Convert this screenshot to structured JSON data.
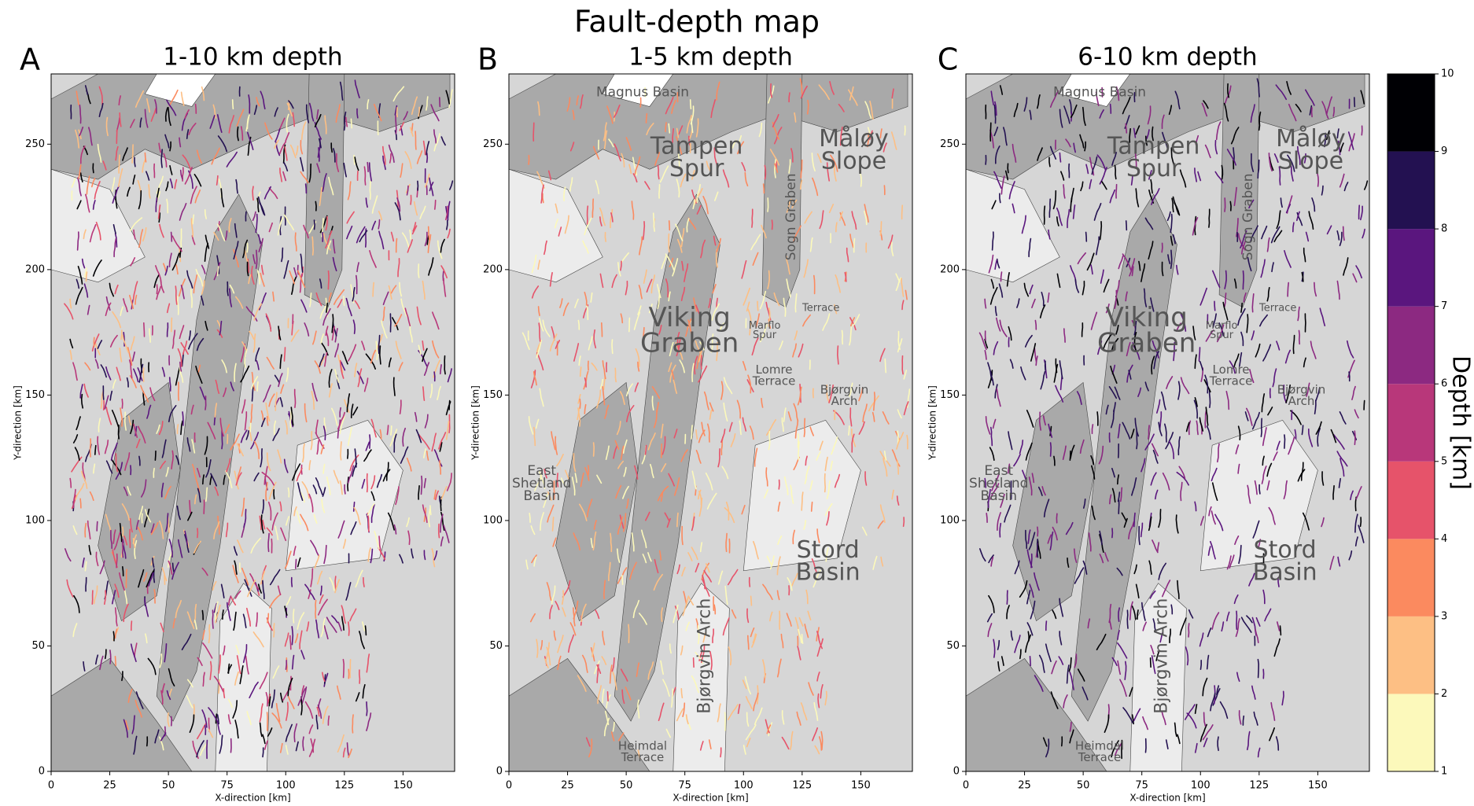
{
  "title": "Fault-depth map",
  "chart_data": [
    {
      "type": "map",
      "panel": "A",
      "title": "1-10 km depth",
      "xlabel": "X-direction [km]",
      "ylabel": "Y-direction [km]",
      "xlim": [
        0,
        172
      ],
      "ylim": [
        0,
        278
      ],
      "xticks": [
        0,
        25,
        50,
        75,
        100,
        125,
        150
      ],
      "yticks": [
        0,
        50,
        100,
        150,
        200,
        250
      ],
      "annotations": []
    },
    {
      "type": "map",
      "panel": "B",
      "title": "1-5 km depth",
      "xlabel": "X-direction [km]",
      "ylabel": "Y-direction [km]",
      "xlim": [
        0,
        172
      ],
      "ylim": [
        0,
        278
      ],
      "xticks": [
        0,
        25,
        50,
        75,
        100,
        125,
        150
      ],
      "yticks": [
        0,
        50,
        100,
        150,
        200,
        250
      ],
      "annotations": [
        {
          "lines": [
            "Magnus Basin"
          ]
        },
        {
          "lines": [
            "Tampen",
            "Spur"
          ]
        },
        {
          "lines": [
            "Sogn Graben"
          ]
        },
        {
          "lines": [
            "Måløy",
            "Slope"
          ]
        },
        {
          "lines": [
            "Viking",
            "Graben"
          ]
        },
        {
          "lines": [
            "Marflo",
            "Spur"
          ]
        },
        {
          "lines": [
            "Terrace"
          ]
        },
        {
          "lines": [
            "Lomre",
            "Terrace"
          ]
        },
        {
          "lines": [
            "Bjørgvin",
            "Arch"
          ]
        },
        {
          "lines": [
            "East",
            "Shetland",
            "Basin"
          ]
        },
        {
          "lines": [
            "Stord",
            "Basin"
          ]
        },
        {
          "lines": [
            "Bjørgvin Arch"
          ]
        },
        {
          "lines": [
            "Heimdal",
            "Terrace"
          ]
        }
      ]
    },
    {
      "type": "map",
      "panel": "C",
      "title": "6-10 km depth",
      "xlabel": "X-direction [km]",
      "ylabel": "Y-direction [km]",
      "xlim": [
        0,
        172
      ],
      "ylim": [
        0,
        278
      ],
      "xticks": [
        0,
        25,
        50,
        75,
        100,
        125,
        150
      ],
      "yticks": [
        0,
        50,
        100,
        150,
        200,
        250
      ],
      "annotations": [
        {
          "lines": [
            "Magnus Basin"
          ]
        },
        {
          "lines": [
            "Tampen",
            "Spur"
          ]
        },
        {
          "lines": [
            "Sogn Graben"
          ]
        },
        {
          "lines": [
            "Måløy",
            "Slope"
          ]
        },
        {
          "lines": [
            "Viking",
            "Graben"
          ]
        },
        {
          "lines": [
            "Marflo",
            "Spur"
          ]
        },
        {
          "lines": [
            "Terrace"
          ]
        },
        {
          "lines": [
            "Lomre",
            "Terrace"
          ]
        },
        {
          "lines": [
            "Bjørgvin",
            "Arch"
          ]
        },
        {
          "lines": [
            "East",
            "Shetland",
            "Basin"
          ]
        },
        {
          "lines": [
            "Stord",
            "Basin"
          ]
        },
        {
          "lines": [
            "Bjørgvin Arch"
          ]
        },
        {
          "lines": [
            "Heimdal",
            "Terrace"
          ]
        }
      ]
    }
  ],
  "colorbar": {
    "label": "Depth [km]",
    "lim": [
      1,
      10
    ],
    "ticks": [
      1,
      2,
      3,
      4,
      5,
      6,
      7,
      8,
      9,
      10
    ],
    "colors": [
      "#fcf9bb",
      "#fdbf84",
      "#fb8a5f",
      "#e6536a",
      "#b8377a",
      "#8c2981",
      "#5a167e",
      "#231151",
      "#000004"
    ]
  }
}
